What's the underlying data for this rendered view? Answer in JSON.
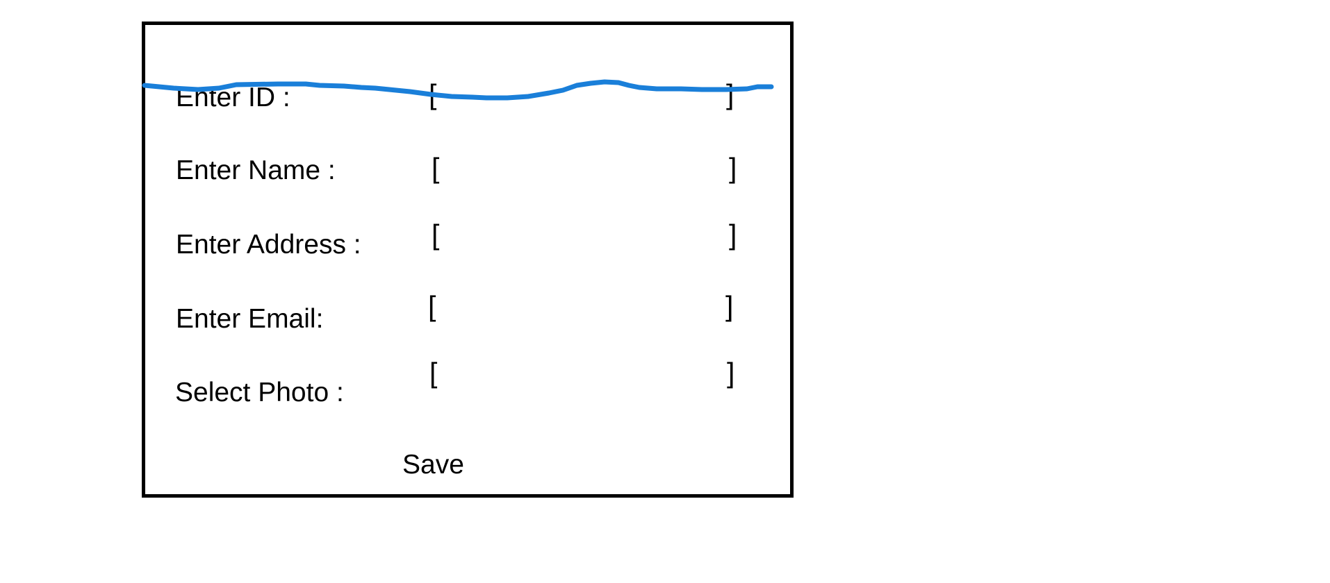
{
  "form": {
    "fields": [
      {
        "label": "Enter ID :",
        "open": "[",
        "close": "]",
        "value": ""
      },
      {
        "label": "Enter Name :",
        "open": "[",
        "close": "]",
        "value": ""
      },
      {
        "label": "Enter Address :",
        "open": "[",
        "close": "]",
        "value": ""
      },
      {
        "label": "Enter Email:",
        "open": "[",
        "close": "]",
        "value": ""
      },
      {
        "label": "Select Photo :",
        "open": "[",
        "close": "]",
        "value": ""
      }
    ],
    "save_label": "Save"
  },
  "annotation": {
    "strike_color": "#1a7fd9"
  }
}
